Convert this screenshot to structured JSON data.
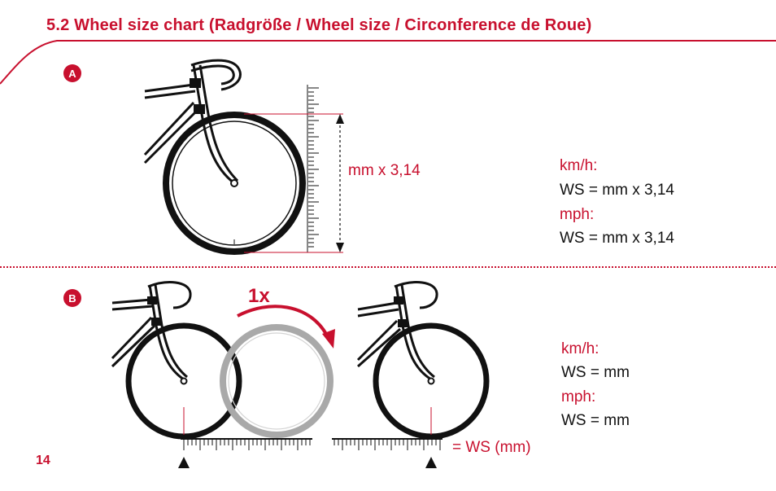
{
  "header": {
    "title": "5.2 Wheel size chart (Radgröße / Wheel size / Circonference de Roue)"
  },
  "section_a": {
    "badge": "A",
    "measure_label": "mm x 3,14",
    "kmh_label": "km/h:",
    "kmh_formula": "WS = mm x 3,14",
    "mph_label": "mph:",
    "mph_formula": "WS = mm x 3,14"
  },
  "section_b": {
    "badge": "B",
    "rotation_label": "1x",
    "ws_label": "= WS (mm)",
    "kmh_label": "km/h:",
    "kmh_formula": "WS = mm",
    "mph_label": "mph:",
    "mph_formula": "WS = mm"
  },
  "footer": {
    "page_number": "14"
  },
  "colors": {
    "accent": "#c8102e",
    "ink": "#111111",
    "ghost_wheel": "#a9a9a9"
  }
}
